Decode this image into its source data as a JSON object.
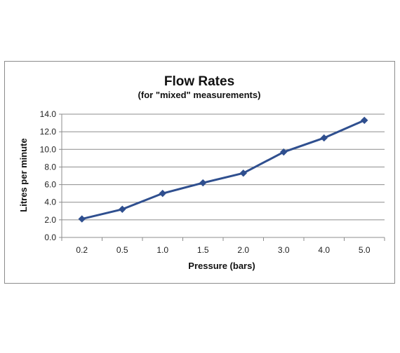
{
  "chart_data": {
    "type": "line",
    "title": "Flow Rates",
    "subtitle": "(for \"mixed\"  measurements)",
    "xlabel": "Pressure (bars)",
    "ylabel": "Litres per minute",
    "categories": [
      "0.2",
      "0.5",
      "1.0",
      "1.5",
      "2.0",
      "3.0",
      "4.0",
      "5.0"
    ],
    "series": [
      {
        "values": [
          2.1,
          3.2,
          5.0,
          6.2,
          7.3,
          9.7,
          11.3,
          13.3
        ]
      }
    ],
    "ylim": [
      0,
      14
    ],
    "yticks": [
      "0.0",
      "2.0",
      "4.0",
      "6.0",
      "8.0",
      "10.0",
      "12.0",
      "14.0"
    ],
    "grid": true,
    "legend": "none",
    "colors": {
      "line": "#2f4f8f",
      "grid": "#8c8c8c",
      "axis": "#8c8c8c"
    }
  }
}
